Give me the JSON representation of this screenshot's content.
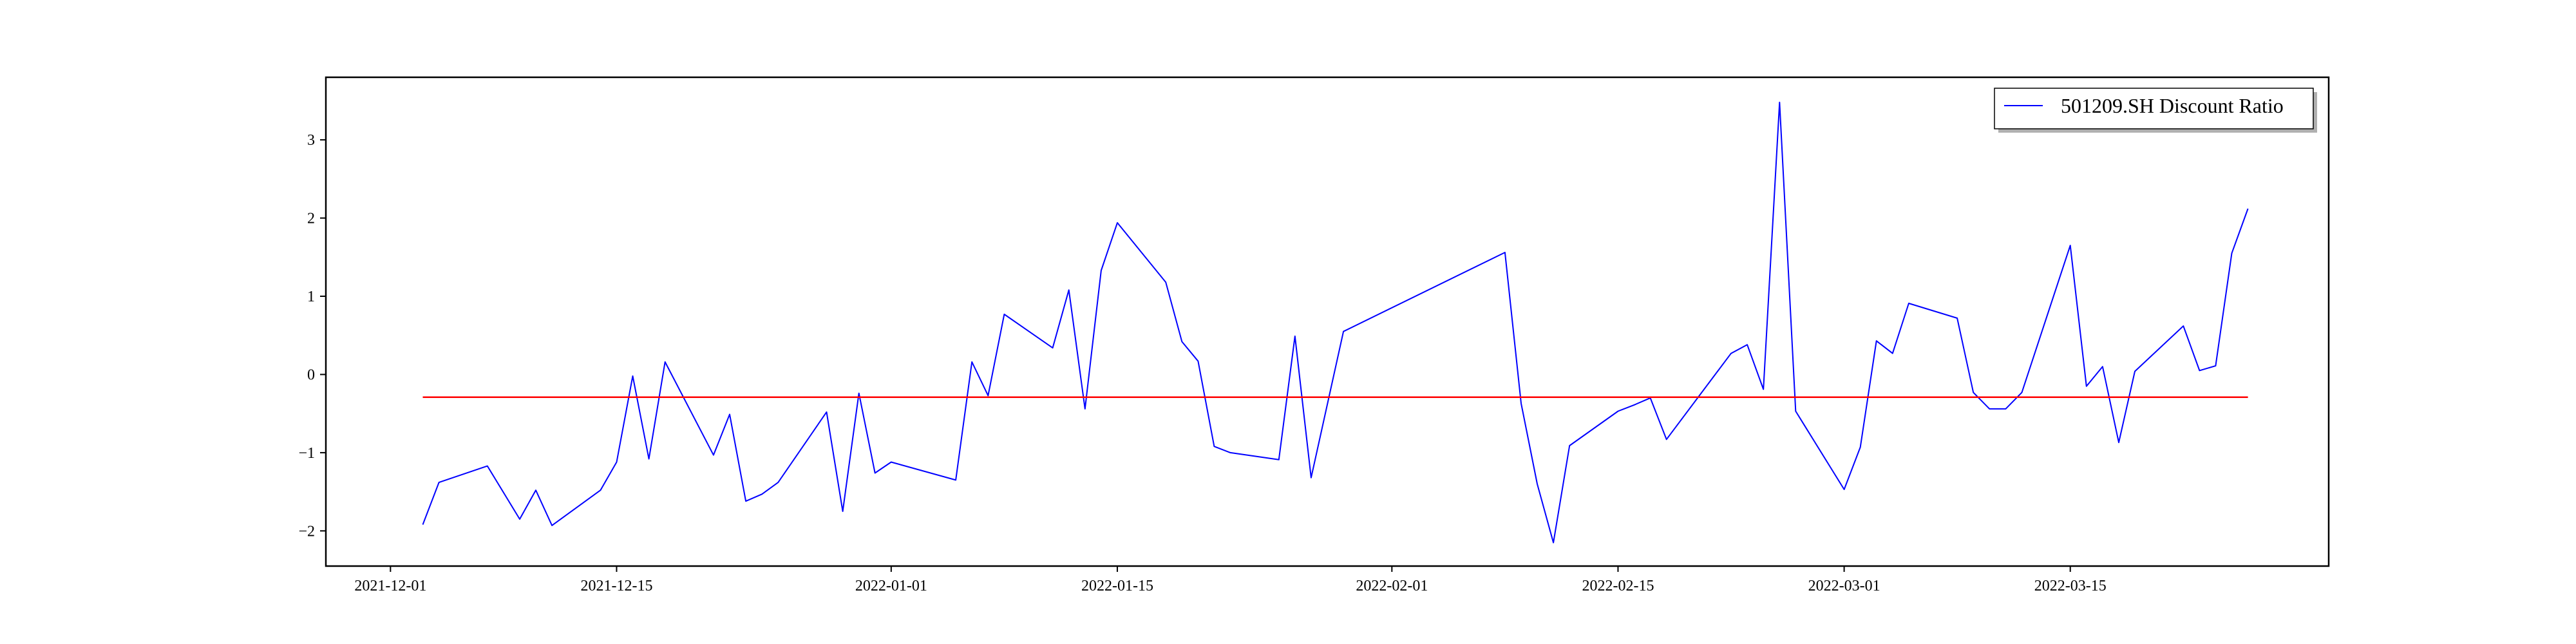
{
  "chart_data": {
    "type": "line",
    "title": "",
    "xlabel": "",
    "ylabel": "",
    "xlim": [
      "2021-11-27",
      "2022-03-31"
    ],
    "ylim": [
      -2.45,
      3.8
    ],
    "grid": false,
    "legend_position": "top-right",
    "x_ticks": [
      "2021-12-01",
      "2021-12-15",
      "2022-01-01",
      "2022-01-15",
      "2022-02-01",
      "2022-02-15",
      "2022-03-01",
      "2022-03-15"
    ],
    "y_ticks": [
      3,
      2,
      1,
      0,
      -1,
      -2
    ],
    "y_tick_labels": [
      "3",
      "2",
      "1",
      "0",
      "−1",
      "−2"
    ],
    "series": [
      {
        "name": "501209.SH Discount Ratio",
        "color": "#0000ff",
        "points": [
          [
            "2021-12-03",
            -1.92
          ],
          [
            "2021-12-04",
            -1.38
          ],
          [
            "2021-12-07",
            -1.17
          ],
          [
            "2021-12-09",
            -1.85
          ],
          [
            "2021-12-10",
            -1.48
          ],
          [
            "2021-12-11",
            -1.93
          ],
          [
            "2021-12-14",
            -1.48
          ],
          [
            "2021-12-15",
            -1.12
          ],
          [
            "2021-12-16",
            -0.02
          ],
          [
            "2021-12-17",
            -1.08
          ],
          [
            "2021-12-18",
            0.16
          ],
          [
            "2021-12-21",
            -1.03
          ],
          [
            "2021-12-22",
            -0.51
          ],
          [
            "2021-12-23",
            -1.62
          ],
          [
            "2021-12-24",
            -1.53
          ],
          [
            "2021-12-25",
            -1.38
          ],
          [
            "2021-12-28",
            -0.48
          ],
          [
            "2021-12-29",
            -1.75
          ],
          [
            "2021-12-30",
            -0.24
          ],
          [
            "2021-12-31",
            -1.26
          ],
          [
            "2022-01-01",
            -1.12
          ],
          [
            "2022-01-05",
            -1.35
          ],
          [
            "2022-01-06",
            0.16
          ],
          [
            "2022-01-07",
            -0.27
          ],
          [
            "2022-01-08",
            0.77
          ],
          [
            "2022-01-11",
            0.34
          ],
          [
            "2022-01-12",
            1.08
          ],
          [
            "2022-01-13",
            -0.44
          ],
          [
            "2022-01-14",
            1.33
          ],
          [
            "2022-01-15",
            1.94
          ],
          [
            "2022-01-18",
            1.18
          ],
          [
            "2022-01-19",
            0.42
          ],
          [
            "2022-01-20",
            0.17
          ],
          [
            "2022-01-21",
            -0.92
          ],
          [
            "2022-01-22",
            -1.0
          ],
          [
            "2022-01-25",
            -1.09
          ],
          [
            "2022-01-26",
            0.49
          ],
          [
            "2022-01-27",
            -1.32
          ],
          [
            "2022-01-29",
            0.55
          ],
          [
            "2022-02-08",
            1.56
          ],
          [
            "2022-02-09",
            -0.37
          ],
          [
            "2022-02-10",
            -1.4
          ],
          [
            "2022-02-11",
            -2.15
          ],
          [
            "2022-02-12",
            -0.91
          ],
          [
            "2022-02-15",
            -0.47
          ],
          [
            "2022-02-16",
            -0.39
          ],
          [
            "2022-02-17",
            -0.3
          ],
          [
            "2022-02-18",
            -0.83
          ],
          [
            "2022-02-22",
            0.27
          ],
          [
            "2022-02-23",
            0.38
          ],
          [
            "2022-02-24",
            -0.19
          ],
          [
            "2022-02-25",
            3.48
          ],
          [
            "2022-02-26",
            -0.47
          ],
          [
            "2022-03-01",
            -1.47
          ],
          [
            "2022-03-02",
            -0.93
          ],
          [
            "2022-03-03",
            0.43
          ],
          [
            "2022-03-04",
            0.27
          ],
          [
            "2022-03-05",
            0.91
          ],
          [
            "2022-03-08",
            0.72
          ],
          [
            "2022-03-09",
            -0.23
          ],
          [
            "2022-03-10",
            -0.44
          ],
          [
            "2022-03-11",
            -0.44
          ],
          [
            "2022-03-12",
            -0.23
          ],
          [
            "2022-03-15",
            1.65
          ],
          [
            "2022-03-16",
            -0.15
          ],
          [
            "2022-03-17",
            0.1
          ],
          [
            "2022-03-18",
            -0.87
          ],
          [
            "2022-03-19",
            0.04
          ],
          [
            "2022-03-22",
            0.62
          ],
          [
            "2022-03-23",
            0.05
          ],
          [
            "2022-03-24",
            0.11
          ],
          [
            "2022-03-25",
            1.55
          ],
          [
            "2022-03-26",
            2.12
          ]
        ]
      },
      {
        "name": "",
        "color": "#ff0000",
        "points": [
          [
            "2021-12-03",
            -0.29
          ],
          [
            "2022-03-26",
            -0.29
          ]
        ]
      }
    ]
  }
}
